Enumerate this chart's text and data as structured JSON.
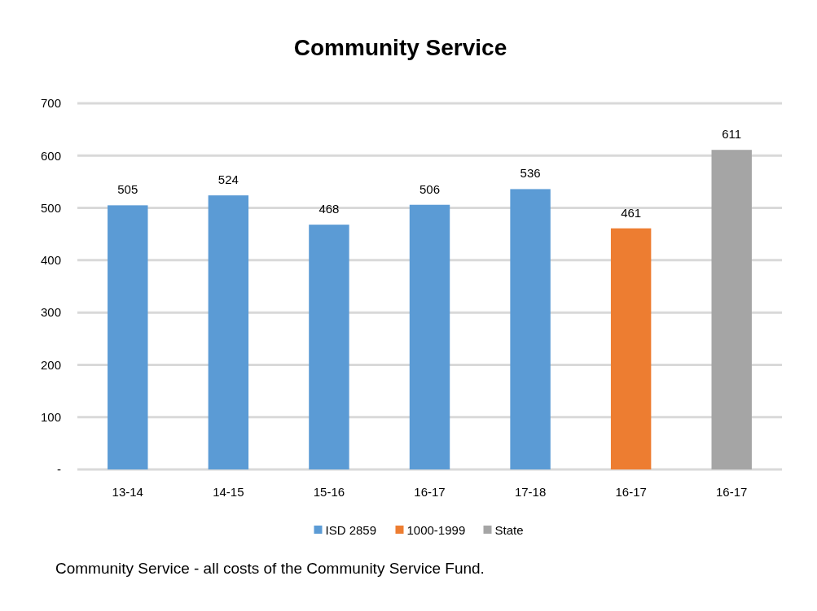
{
  "chart_data": {
    "type": "bar",
    "title": "Community  Service",
    "categories": [
      "13-14",
      "14-15",
      "15-16",
      "16-17",
      "17-18",
      "16-17",
      "16-17"
    ],
    "series": [
      {
        "name": "ISD 2859",
        "color": "#5b9bd5",
        "values": [
          505,
          524,
          468,
          506,
          536,
          null,
          null
        ]
      },
      {
        "name": "1000-1999",
        "color": "#ed7d31",
        "values": [
          null,
          null,
          null,
          null,
          null,
          461,
          null
        ]
      },
      {
        "name": "State",
        "color": "#a5a5a5",
        "values": [
          null,
          null,
          null,
          null,
          null,
          null,
          611
        ]
      }
    ],
    "ylim": [
      0,
      700
    ],
    "yticks": [
      {
        "value": 0,
        "label": "-"
      },
      100,
      200,
      300,
      400,
      500,
      600,
      700
    ],
    "grid": "y",
    "data_labels": true,
    "legend": "bottom",
    "annotations": [
      "Community Service - all costs of the Community Service Fund."
    ]
  }
}
